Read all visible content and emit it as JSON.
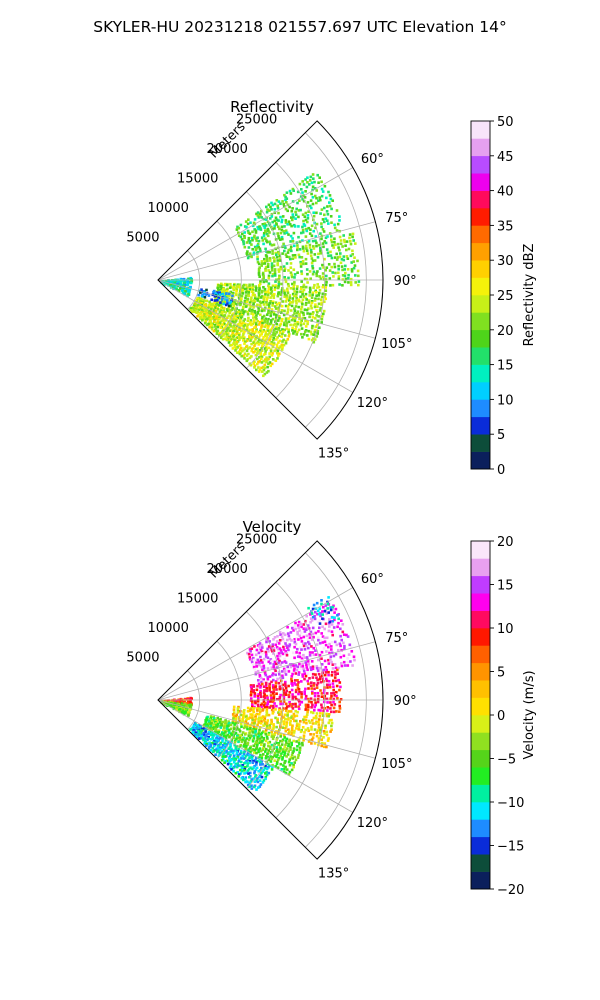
{
  "figure": {
    "title": "SKYLER-HU  20231218  021557.697 UTC Elevation 14°"
  },
  "chart_data": [
    {
      "type": "heatmap",
      "projection": "polar-sector",
      "title": "Reflectivity",
      "radial_axis_label": "Meters",
      "radial_ticks": [
        5000,
        10000,
        15000,
        20000,
        25000
      ],
      "radial_tick_labels": [
        "5000",
        "10000",
        "15000",
        "20000",
        "25000"
      ],
      "radial_range": [
        0,
        27000
      ],
      "azimuth_range_deg": [
        45,
        135
      ],
      "azimuth_ticks_deg": [
        60,
        75,
        90,
        105,
        120,
        135
      ],
      "azimuth_tick_labels": [
        "60°",
        "75°",
        "90°",
        "105°",
        "120°",
        "135°"
      ],
      "grid": true,
      "colorbar": {
        "label": "Reflectivity dBZ",
        "min": 0,
        "max": 50,
        "ticks": [
          0,
          5,
          10,
          15,
          20,
          25,
          30,
          35,
          40,
          45,
          50
        ],
        "tick_labels": [
          "0",
          "5",
          "10",
          "15",
          "20",
          "25",
          "30",
          "35",
          "40",
          "45",
          "50"
        ],
        "bands": [
          {
            "from": 0,
            "to": 2.5,
            "color": "#0b1f5c"
          },
          {
            "from": 2.5,
            "to": 5,
            "color": "#0d4d3a"
          },
          {
            "from": 5,
            "to": 7.5,
            "color": "#0a2cd9"
          },
          {
            "from": 7.5,
            "to": 10,
            "color": "#1e8cff"
          },
          {
            "from": 10,
            "to": 12.5,
            "color": "#00cfff"
          },
          {
            "from": 12.5,
            "to": 15,
            "color": "#00f0c0"
          },
          {
            "from": 15,
            "to": 17.5,
            "color": "#22e06a"
          },
          {
            "from": 17.5,
            "to": 20,
            "color": "#4ed41a"
          },
          {
            "from": 20,
            "to": 22.5,
            "color": "#80e020"
          },
          {
            "from": 22.5,
            "to": 25,
            "color": "#c8f018"
          },
          {
            "from": 25,
            "to": 27.5,
            "color": "#f5f20a"
          },
          {
            "from": 27.5,
            "to": 30,
            "color": "#ffd000"
          },
          {
            "from": 30,
            "to": 32.5,
            "color": "#ffa000"
          },
          {
            "from": 32.5,
            "to": 35,
            "color": "#ff6a00"
          },
          {
            "from": 35,
            "to": 37.5,
            "color": "#ff1c00"
          },
          {
            "from": 37.5,
            "to": 40,
            "color": "#ff0a5c"
          },
          {
            "from": 40,
            "to": 42.5,
            "color": "#ee00ee"
          },
          {
            "from": 42.5,
            "to": 45,
            "color": "#b84cff"
          },
          {
            "from": 45,
            "to": 47.5,
            "color": "#e6a0f0"
          },
          {
            "from": 47.5,
            "to": 50,
            "color": "#f8e4fa"
          }
        ]
      },
      "echo_regions": [
        {
          "r": [
            11000,
            23000
          ],
          "az": [
            55,
            76
          ],
          "value": 18,
          "density": 0.55
        },
        {
          "r": [
            12000,
            24000
          ],
          "az": [
            76,
            92
          ],
          "value": 20,
          "density": 0.6
        },
        {
          "r": [
            7000,
            20000
          ],
          "az": [
            92,
            112
          ],
          "value": 22,
          "density": 0.8
        },
        {
          "r": [
            5000,
            17000
          ],
          "az": [
            112,
            133
          ],
          "value": 24,
          "density": 0.85
        },
        {
          "r": [
            300,
            4000
          ],
          "az": [
            84,
            118
          ],
          "value": 14,
          "density": 0.5
        },
        {
          "r": [
            5000,
            9000
          ],
          "az": [
            100,
            110
          ],
          "value": 8,
          "density": 0.4
        }
      ]
    },
    {
      "type": "heatmap",
      "projection": "polar-sector",
      "title": "Velocity",
      "radial_axis_label": "Meters",
      "radial_ticks": [
        5000,
        10000,
        15000,
        20000,
        25000
      ],
      "radial_tick_labels": [
        "5000",
        "10000",
        "15000",
        "20000",
        "25000"
      ],
      "radial_range": [
        0,
        27000
      ],
      "azimuth_range_deg": [
        45,
        135
      ],
      "azimuth_ticks_deg": [
        60,
        75,
        90,
        105,
        120,
        135
      ],
      "azimuth_tick_labels": [
        "60°",
        "75°",
        "90°",
        "105°",
        "120°",
        "135°"
      ],
      "grid": true,
      "colorbar": {
        "label": "Velocity (m/s)",
        "min": -20,
        "max": 20,
        "ticks": [
          -20,
          -15,
          -10,
          -5,
          0,
          5,
          10,
          15,
          20
        ],
        "tick_labels": [
          "−20",
          "−15",
          "−10",
          "−5",
          "0",
          "5",
          "10",
          "15",
          "20"
        ],
        "bands": [
          {
            "from": -20,
            "to": -18,
            "color": "#0b1f5c"
          },
          {
            "from": -18,
            "to": -16,
            "color": "#0d4d3a"
          },
          {
            "from": -16,
            "to": -14,
            "color": "#0a2cd9"
          },
          {
            "from": -14,
            "to": -12,
            "color": "#1e8cff"
          },
          {
            "from": -12,
            "to": -10,
            "color": "#00e8ff"
          },
          {
            "from": -10,
            "to": -8,
            "color": "#00f0a0"
          },
          {
            "from": -8,
            "to": -6,
            "color": "#22ee22"
          },
          {
            "from": -6,
            "to": -4,
            "color": "#55d41a"
          },
          {
            "from": -4,
            "to": -2,
            "color": "#90e020"
          },
          {
            "from": -2,
            "to": 0,
            "color": "#d8f018"
          },
          {
            "from": 0,
            "to": 2,
            "color": "#ffe000"
          },
          {
            "from": 2,
            "to": 4,
            "color": "#ffc000"
          },
          {
            "from": 4,
            "to": 6,
            "color": "#ff9400"
          },
          {
            "from": 6,
            "to": 8,
            "color": "#ff6000"
          },
          {
            "from": 8,
            "to": 10,
            "color": "#ff1800"
          },
          {
            "from": 10,
            "to": 12,
            "color": "#ff0a60"
          },
          {
            "from": 12,
            "to": 14,
            "color": "#ff00ee"
          },
          {
            "from": 14,
            "to": 16,
            "color": "#c03cff"
          },
          {
            "from": 16,
            "to": 18,
            "color": "#e8a0f0"
          },
          {
            "from": 18,
            "to": 20,
            "color": "#fae6fa"
          }
        ]
      },
      "echo_regions": [
        {
          "r": [
            12000,
            24000
          ],
          "az": [
            60,
            80
          ],
          "value": 15,
          "density": 0.6
        },
        {
          "r": [
            11000,
            22000
          ],
          "az": [
            80,
            94
          ],
          "value": 10,
          "density": 0.7
        },
        {
          "r": [
            9000,
            21000
          ],
          "az": [
            94,
            106
          ],
          "value": 1,
          "density": 0.75
        },
        {
          "r": [
            6000,
            18000
          ],
          "az": [
            106,
            120
          ],
          "value": -5,
          "density": 0.8
        },
        {
          "r": [
            5000,
            16000
          ],
          "az": [
            120,
            134
          ],
          "value": -11,
          "density": 0.8
        },
        {
          "r": [
            21000,
            24000
          ],
          "az": [
            58,
            66
          ],
          "value": -12,
          "density": 0.5
        },
        {
          "r": [
            300,
            4000
          ],
          "az": [
            84,
            96
          ],
          "value": 8,
          "density": 0.5
        },
        {
          "r": [
            300,
            4000
          ],
          "az": [
            96,
            118
          ],
          "value": -4,
          "density": 0.5
        }
      ]
    }
  ]
}
